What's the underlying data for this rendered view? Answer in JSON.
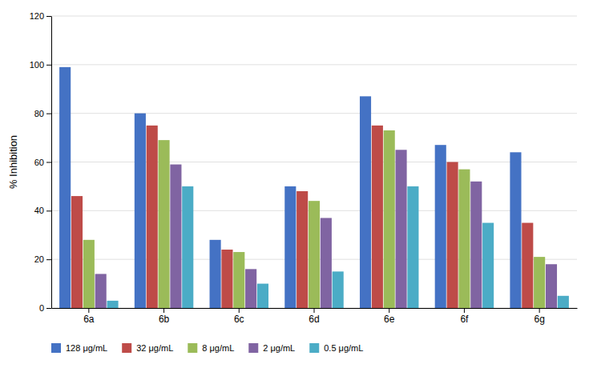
{
  "chart_data": {
    "type": "bar",
    "categories": [
      "6a",
      "6b",
      "6c",
      "6d",
      "6e",
      "6f",
      "6g"
    ],
    "series": [
      {
        "name": "128 μg/mL",
        "color": "#4472C4",
        "values": [
          99,
          80,
          28,
          50,
          87,
          67,
          64
        ]
      },
      {
        "name": "32 μg/mL",
        "color": "#BE4B48",
        "values": [
          46,
          75,
          24,
          48,
          75,
          60,
          35
        ]
      },
      {
        "name": "8 μg/mL",
        "color": "#9BBB59",
        "values": [
          28,
          69,
          23,
          44,
          73,
          57,
          21
        ]
      },
      {
        "name": "2 μg/mL",
        "color": "#8064A2",
        "values": [
          14,
          59,
          16,
          37,
          65,
          52,
          18
        ]
      },
      {
        "name": "0.5 μg/mL",
        "color": "#4BACC6",
        "values": [
          3,
          50,
          10,
          15,
          50,
          35,
          5
        ]
      }
    ],
    "ylabel": "% Inhibition",
    "ylim": [
      0,
      120
    ],
    "yticks": [
      0,
      20,
      40,
      60,
      80,
      100,
      120
    ],
    "grid": true,
    "legend": "bottom"
  }
}
